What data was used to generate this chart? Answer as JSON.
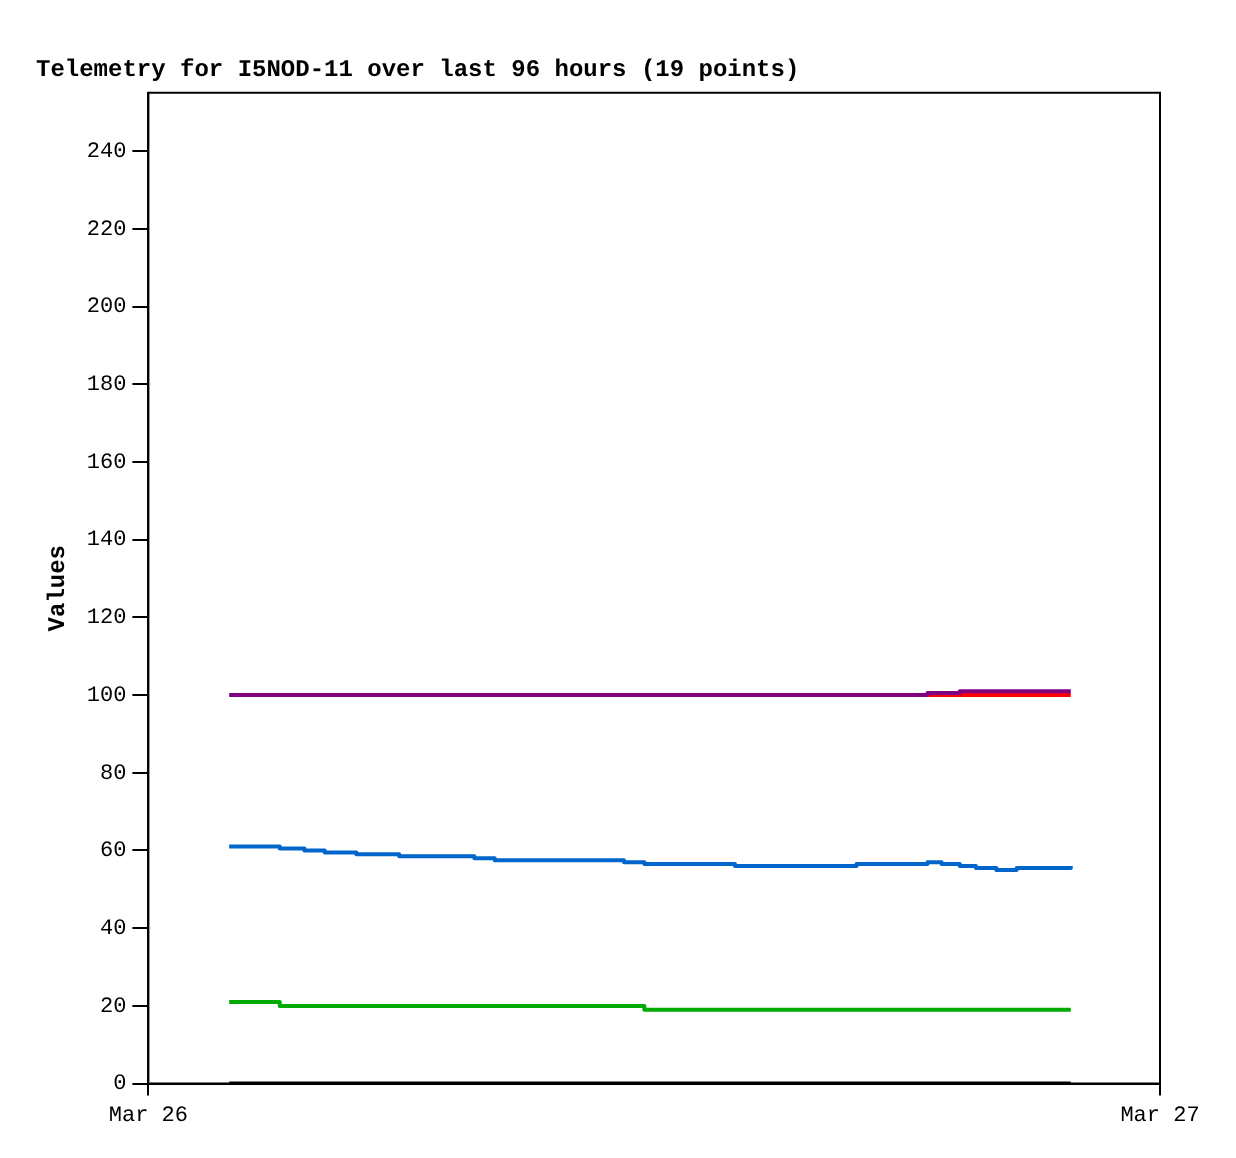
{
  "chart_data": {
    "type": "step",
    "title": "Telemetry for I5NOD-11 over last 96 hours (19 points)",
    "ylabel": "Values",
    "x": [
      "--03-26T01:55",
      "--03-26T03:07",
      "--03-26T03:42",
      "--03-26T04:11",
      "--03-26T04:56",
      "--03-26T05:57",
      "--03-26T07:44",
      "--03-26T08:13",
      "--03-26T11:17",
      "--03-26T11:46",
      "--03-26T13:55",
      "--03-26T16:48",
      "--03-26T18:29",
      "--03-26T18:49",
      "--03-26T19:15",
      "--03-26T19:38",
      "--03-26T20:07",
      "--03-26T20:36",
      "--03-26T21:53"
    ],
    "xlim": [
      "--03-26",
      "--03-27"
    ],
    "xticks": [
      {
        "value": "--03-26",
        "label": "Mar 26"
      },
      {
        "value": "--03-27",
        "label": "Mar 27"
      }
    ],
    "ylim": [
      0,
      255
    ],
    "yticks": [
      0,
      20,
      40,
      60,
      80,
      100,
      120,
      140,
      160,
      180,
      200,
      220,
      240
    ],
    "series": [
      {
        "color": "#800080",
        "values": [
          100,
          100,
          100,
          100,
          100,
          100,
          100,
          100,
          100,
          100,
          100,
          100,
          100.5,
          100.5,
          101,
          101,
          101,
          101,
          101
        ]
      },
      {
        "color": "#ff0000",
        "values": [
          null,
          null,
          null,
          null,
          null,
          null,
          null,
          null,
          null,
          null,
          null,
          null,
          100,
          100,
          100,
          100,
          100,
          100,
          100
        ]
      },
      {
        "color": "#0066cc",
        "values": [
          61,
          60.5,
          60,
          59.5,
          59,
          58.5,
          58,
          57.5,
          57,
          56.5,
          56,
          56.5,
          57,
          56.5,
          56,
          55.5,
          55,
          55.5,
          56
        ]
      },
      {
        "color": "#00aa00",
        "values": [
          21,
          20,
          20,
          20,
          20,
          20,
          20,
          20,
          20,
          19,
          19,
          19,
          19,
          19,
          19,
          19,
          19,
          19,
          19
        ]
      },
      {
        "color": "#000000",
        "values": [
          0,
          0,
          0,
          0,
          0,
          0,
          0,
          0,
          0,
          0,
          0,
          0,
          0,
          0,
          0,
          0,
          0,
          0,
          0
        ]
      }
    ],
    "grid": false,
    "legend": false
  }
}
